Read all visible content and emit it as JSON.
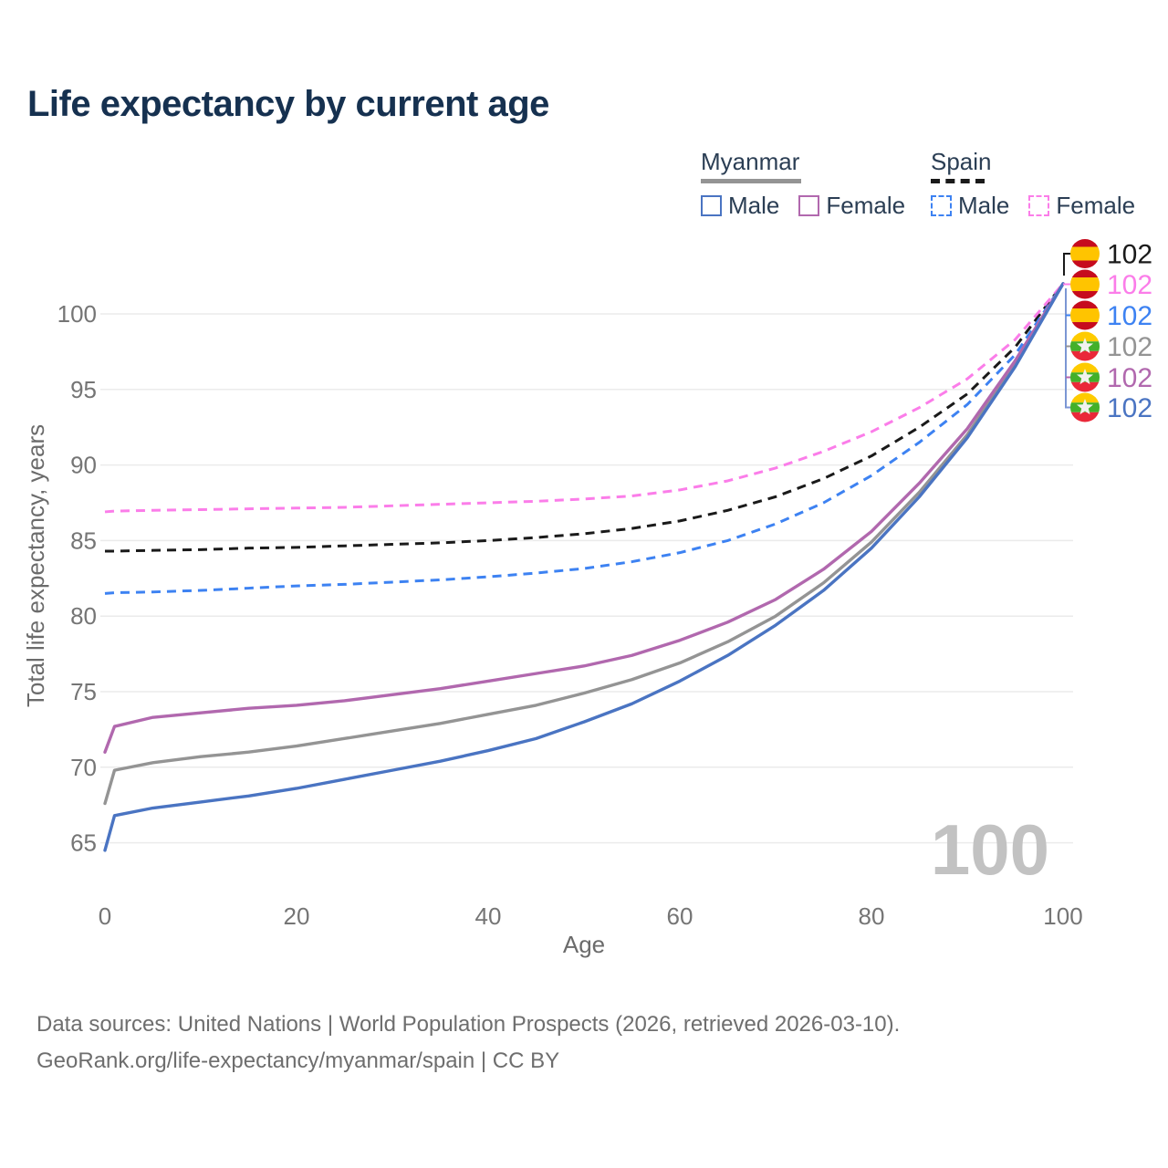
{
  "title": "Life expectancy by current age",
  "legend": {
    "groups": [
      {
        "label": "Myanmar",
        "key_style": "solid",
        "items": [
          {
            "label": "Male"
          },
          {
            "label": "Female"
          }
        ]
      },
      {
        "label": "Spain",
        "key_style": "dashed",
        "items": [
          {
            "label": "Male"
          },
          {
            "label": "Female"
          }
        ]
      }
    ]
  },
  "chart_data": {
    "type": "line",
    "title": "Life expectancy by current age",
    "xlabel": "Age",
    "ylabel": "Total life expectancy, years",
    "xlim": [
      0,
      100
    ],
    "ylim": [
      63,
      103
    ],
    "xticks": [
      0,
      20,
      40,
      60,
      80,
      100
    ],
    "yticks": [
      65,
      70,
      75,
      80,
      85,
      90,
      95,
      100
    ],
    "grid": "horizontal",
    "watermark": "100",
    "x": [
      0,
      1,
      5,
      10,
      15,
      20,
      25,
      30,
      35,
      40,
      45,
      50,
      55,
      60,
      65,
      70,
      75,
      80,
      85,
      90,
      95,
      100
    ],
    "series": [
      {
        "id": "spain-all",
        "name": "Spain — All",
        "country": "Spain",
        "sex": "All",
        "color": "#1a1a1a",
        "dashed": true,
        "flag": "spain",
        "end_label": "102",
        "values": [
          84.3,
          84.3,
          84.35,
          84.4,
          84.5,
          84.55,
          84.65,
          84.75,
          84.85,
          85.0,
          85.2,
          85.45,
          85.8,
          86.3,
          87.0,
          87.9,
          89.1,
          90.6,
          92.5,
          94.7,
          97.8,
          102
        ]
      },
      {
        "id": "spain-female",
        "name": "Spain — Female",
        "country": "Spain",
        "sex": "Female",
        "color": "#fb7de9",
        "dashed": true,
        "flag": "spain",
        "end_label": "102",
        "values": [
          86.9,
          86.95,
          87.0,
          87.05,
          87.1,
          87.15,
          87.2,
          87.3,
          87.4,
          87.5,
          87.6,
          87.75,
          87.95,
          88.35,
          88.95,
          89.8,
          90.9,
          92.2,
          93.8,
          95.7,
          98.3,
          102
        ]
      },
      {
        "id": "spain-male",
        "name": "Spain — Male",
        "country": "Spain",
        "sex": "Male",
        "color": "#3d82f2",
        "dashed": true,
        "flag": "spain",
        "end_label": "102",
        "values": [
          81.5,
          81.55,
          81.6,
          81.7,
          81.85,
          82.0,
          82.1,
          82.25,
          82.4,
          82.6,
          82.85,
          83.15,
          83.6,
          84.2,
          85.0,
          86.1,
          87.5,
          89.3,
          91.5,
          94.0,
          97.3,
          102
        ]
      },
      {
        "id": "myanmar-all",
        "name": "Myanmar — All",
        "country": "Myanmar",
        "sex": "All",
        "color": "#949494",
        "dashed": false,
        "flag": "myanmar",
        "end_label": "102",
        "values": [
          67.6,
          69.8,
          70.3,
          70.7,
          71.0,
          71.4,
          71.9,
          72.4,
          72.9,
          73.5,
          74.1,
          74.9,
          75.8,
          76.9,
          78.3,
          80.0,
          82.2,
          84.9,
          88.2,
          92.0,
          96.7,
          102
        ]
      },
      {
        "id": "myanmar-female",
        "name": "Myanmar — Female",
        "country": "Myanmar",
        "sex": "Female",
        "color": "#b168ae",
        "dashed": false,
        "flag": "myanmar",
        "end_label": "102",
        "values": [
          71.0,
          72.7,
          73.3,
          73.6,
          73.9,
          74.1,
          74.4,
          74.8,
          75.2,
          75.7,
          76.2,
          76.7,
          77.4,
          78.4,
          79.6,
          81.1,
          83.1,
          85.6,
          88.8,
          92.4,
          96.9,
          102
        ]
      },
      {
        "id": "myanmar-male",
        "name": "Myanmar — Male",
        "country": "Myanmar",
        "sex": "Male",
        "color": "#4a74c2",
        "dashed": false,
        "flag": "myanmar",
        "end_label": "102",
        "values": [
          64.5,
          66.8,
          67.3,
          67.7,
          68.1,
          68.6,
          69.2,
          69.8,
          70.4,
          71.1,
          71.9,
          73.0,
          74.2,
          75.7,
          77.4,
          79.4,
          81.7,
          84.5,
          87.9,
          91.8,
          96.5,
          102
        ]
      }
    ],
    "flag_colors": {
      "spain_red": "#c60b1e",
      "spain_yellow": "#ffc400",
      "myanmar_yellow": "#fecb00",
      "myanmar_green": "#43b02a",
      "myanmar_red": "#ea2839",
      "myanmar_star": "#f2f2ef"
    }
  },
  "footer": {
    "line1": "Data sources: United Nations | World Population Prospects (2026, retrieved 2026-03-10).",
    "line2": "GeoRank.org/life-expectancy/myanmar/spain | CC BY"
  }
}
